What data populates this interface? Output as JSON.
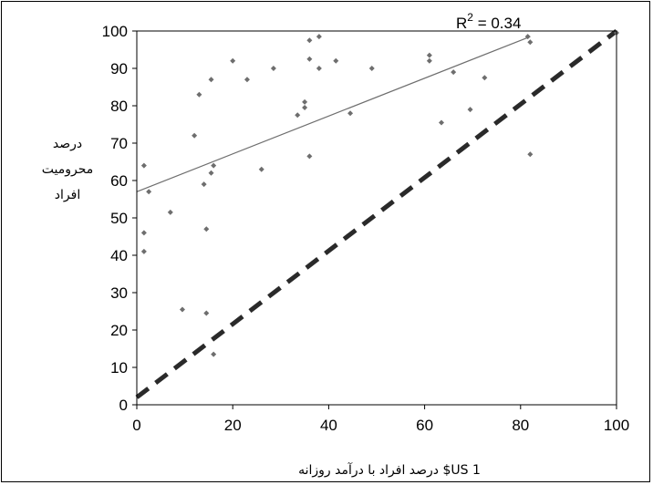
{
  "chart_data": {
    "type": "scatter",
    "title": "",
    "xlabel": "درصد افراد با درآمد روزانه $US 1",
    "ylabel_lines": [
      "درصد",
      "محرومیت",
      "افراد"
    ],
    "xlim": [
      0,
      100
    ],
    "ylim": [
      0,
      100
    ],
    "x_ticks": [
      "0",
      "20",
      "40",
      "60",
      "80",
      "100"
    ],
    "y_ticks": [
      "0",
      "10",
      "20",
      "30",
      "40",
      "50",
      "60",
      "70",
      "80",
      "90",
      "100"
    ],
    "grid": false,
    "annotation": {
      "text": "R",
      "sup": "2",
      "rest": " = 0.34"
    },
    "series": [
      {
        "kind": "points",
        "marker_color": "#6e6e6e",
        "points": [
          [
            1.5,
            64
          ],
          [
            2.5,
            57
          ],
          [
            1.5,
            46
          ],
          [
            1.5,
            41
          ],
          [
            7,
            51.5
          ],
          [
            9.5,
            25.5
          ],
          [
            12,
            72
          ],
          [
            13,
            83
          ],
          [
            14,
            59
          ],
          [
            14.5,
            47
          ],
          [
            14.5,
            24.5
          ],
          [
            15.5,
            62
          ],
          [
            15.5,
            87
          ],
          [
            16,
            64
          ],
          [
            16,
            13.5
          ],
          [
            20,
            92
          ],
          [
            23,
            87
          ],
          [
            26,
            63
          ],
          [
            28.5,
            90
          ],
          [
            33.5,
            77.5
          ],
          [
            35,
            79.5
          ],
          [
            35,
            81
          ],
          [
            36,
            97.5
          ],
          [
            36,
            92.5
          ],
          [
            36,
            66.5
          ],
          [
            38,
            98.5
          ],
          [
            38,
            90
          ],
          [
            41.5,
            92
          ],
          [
            44.5,
            78
          ],
          [
            49,
            90
          ],
          [
            61,
            93.5
          ],
          [
            61,
            92
          ],
          [
            63.5,
            75.5
          ],
          [
            66,
            89
          ],
          [
            69.5,
            79
          ],
          [
            72.5,
            87.5
          ],
          [
            81.5,
            98.5
          ],
          [
            82,
            97
          ],
          [
            82,
            67
          ],
          [
            100,
            99.5
          ]
        ]
      },
      {
        "kind": "trendline",
        "x": [
          0,
          82
        ],
        "y": [
          57,
          98.5
        ],
        "color": "#6e6e6e"
      },
      {
        "kind": "reference",
        "x": [
          0,
          100
        ],
        "y": [
          2,
          100
        ],
        "color": "#2a2a2a",
        "dashed": true
      }
    ]
  }
}
